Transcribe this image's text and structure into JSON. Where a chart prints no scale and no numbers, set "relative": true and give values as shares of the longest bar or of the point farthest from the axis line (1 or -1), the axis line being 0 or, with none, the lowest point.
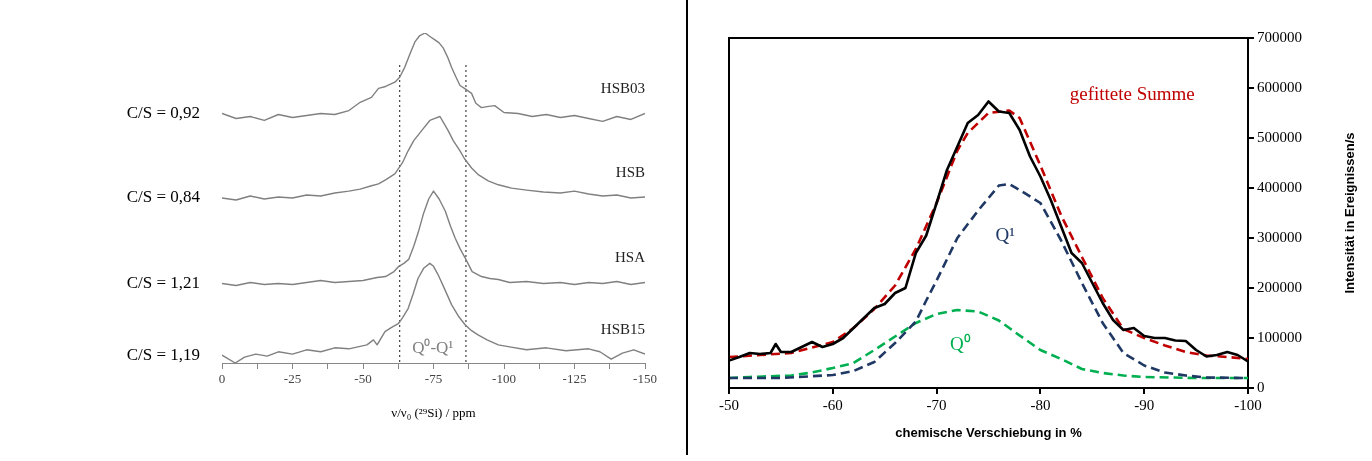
{
  "chart_data": [
    {
      "type": "line",
      "relative": true,
      "xlabel": "ν/ν₀ (²⁹Si) / ppm",
      "xlim": [
        0,
        -150
      ],
      "xticks": [
        0,
        {
          "value": -12.5,
          "label": null
        },
        -25,
        {
          "value": -37.5,
          "label": null
        },
        -50,
        {
          "value": -62.5,
          "label": null
        },
        -75,
        {
          "value": -87.5,
          "label": null
        },
        -100,
        {
          "value": -112.5,
          "label": null
        },
        -125,
        {
          "value": -137.5,
          "label": null
        },
        -150
      ],
      "tick_labels": "x",
      "marker": "none",
      "grid": false,
      "legend": false,
      "ref_lines": [
        {
          "axis": "x",
          "value": -63,
          "color": "#404040",
          "line_style": "dotted"
        },
        {
          "axis": "x",
          "value": -86.5,
          "color": "#404040",
          "line_style": "dotted"
        }
      ],
      "annotations": [
        "C/S = 0,92",
        "C/S = 0,84",
        "C/S = 1,21",
        "C/S = 1,19",
        "Q⁰-Q¹"
      ],
      "series": [
        {
          "name": "HSB03",
          "color": "#808080",
          "x": [
            0,
            -5,
            -10,
            -15,
            -20,
            -25,
            -30,
            -35,
            -40,
            -45,
            -49,
            -53,
            -55.5,
            -58,
            -61.3,
            -63,
            -64.8,
            -66.5,
            -68.4,
            -70,
            -72,
            -74,
            -75.5,
            -77,
            -78.5,
            -80,
            -81.4,
            -83,
            -84.4,
            -86,
            -88.5,
            -90,
            -92,
            -94,
            -96.7,
            -100,
            -105,
            -110,
            -115,
            -120,
            -125,
            -130,
            -135,
            -140,
            -145,
            -150
          ],
          "values": [
            0.756,
            0.741,
            0.747,
            0.735,
            0.753,
            0.744,
            0.75,
            0.756,
            0.753,
            0.765,
            0.79,
            0.805,
            0.832,
            0.838,
            0.851,
            0.866,
            0.896,
            0.933,
            0.973,
            0.991,
            1,
            0.988,
            0.979,
            0.97,
            0.954,
            0.927,
            0.896,
            0.866,
            0.841,
            0.832,
            0.817,
            0.787,
            0.774,
            0.777,
            0.78,
            0.759,
            0.756,
            0.747,
            0.753,
            0.744,
            0.75,
            0.741,
            0.732,
            0.747,
            0.738,
            0.756
          ]
        },
        {
          "name": "HSB",
          "color": "#808080",
          "x": [
            0,
            -5,
            -10,
            -15,
            -20,
            -25,
            -30,
            -35,
            -40,
            -45,
            -49,
            -53,
            -55.5,
            -58,
            -61.3,
            -64,
            -66,
            -68,
            -70.8,
            -73.7,
            -75.5,
            -77.3,
            -78.5,
            -80.2,
            -82,
            -84.4,
            -86,
            -88.5,
            -91,
            -94.4,
            -98,
            -102.7,
            -108,
            -114,
            -120,
            -125,
            -130,
            -135,
            -140,
            -145,
            -150
          ],
          "values": [
            0.5,
            0.494,
            0.506,
            0.497,
            0.503,
            0.5,
            0.509,
            0.506,
            0.515,
            0.521,
            0.527,
            0.537,
            0.543,
            0.555,
            0.573,
            0.607,
            0.643,
            0.674,
            0.704,
            0.735,
            0.741,
            0.747,
            0.729,
            0.704,
            0.674,
            0.643,
            0.619,
            0.591,
            0.57,
            0.552,
            0.54,
            0.53,
            0.524,
            0.518,
            0.515,
            0.521,
            0.512,
            0.506,
            0.509,
            0.5,
            0.503
          ]
        },
        {
          "name": "HSA",
          "color": "#808080",
          "x": [
            0,
            -5,
            -10,
            -15,
            -20,
            -25,
            -30,
            -35,
            -40,
            -45,
            -50,
            -55,
            -58,
            -61,
            -62.7,
            -64.5,
            -66.2,
            -68,
            -69.7,
            -71.5,
            -73.3,
            -75,
            -77,
            -79.2,
            -81,
            -82.7,
            -84.5,
            -86.3,
            -88.7,
            -92,
            -95,
            -98,
            -102,
            -108,
            -114,
            -120,
            -125,
            -130,
            -135,
            -140,
            -145,
            -150
          ],
          "values": [
            0.241,
            0.235,
            0.244,
            0.238,
            0.241,
            0.238,
            0.244,
            0.25,
            0.244,
            0.247,
            0.25,
            0.259,
            0.262,
            0.277,
            0.293,
            0.302,
            0.314,
            0.354,
            0.399,
            0.454,
            0.497,
            0.521,
            0.497,
            0.46,
            0.415,
            0.378,
            0.345,
            0.317,
            0.277,
            0.262,
            0.256,
            0.253,
            0.244,
            0.247,
            0.241,
            0.244,
            0.238,
            0.244,
            0.241,
            0.247,
            0.238,
            0.244
          ]
        },
        {
          "name": "HSB15",
          "color": "#808080",
          "x": [
            0,
            -4.7,
            -8,
            -12,
            -16,
            -20,
            -25,
            -30,
            -35,
            -40,
            -45,
            -51.4,
            -53.7,
            -55,
            -57.8,
            -60,
            -62.5,
            -64,
            -66,
            -67.8,
            -69.5,
            -71.5,
            -73.7,
            -75,
            -76.6,
            -79,
            -81.4,
            -84,
            -86.2,
            -88.5,
            -90.8,
            -94,
            -98,
            -102,
            -108,
            -115,
            -122,
            -130,
            -134,
            -138,
            -142,
            -146,
            -150
          ],
          "values": [
            0.024,
            0,
            0.018,
            0.027,
            0.021,
            0.034,
            0.027,
            0.04,
            0.034,
            0.046,
            0.043,
            0.055,
            0.07,
            0.055,
            0.095,
            0.107,
            0.119,
            0.137,
            0.165,
            0.21,
            0.256,
            0.287,
            0.302,
            0.293,
            0.268,
            0.223,
            0.177,
            0.14,
            0.116,
            0.098,
            0.085,
            0.07,
            0.055,
            0.049,
            0.04,
            0.046,
            0.037,
            0.043,
            0.034,
            0.012,
            0.03,
            0.04,
            0.027
          ]
        }
      ]
    },
    {
      "type": "line",
      "xlabel": "chemische Verschiebung in %",
      "y2label": "Intensität in Ereignissen/s",
      "xlim": [
        -50,
        -100
      ],
      "xticks": [
        -50,
        -60,
        -70,
        -80,
        -90,
        -100
      ],
      "y2lim": [
        0,
        700000
      ],
      "y2ticks": [
        0,
        100000,
        200000,
        300000,
        400000,
        500000,
        600000,
        700000
      ],
      "marker": "none",
      "grid": false,
      "legend": false,
      "series": [
        {
          "color": "#000000",
          "axis": "y2",
          "line_style": "solid",
          "x": [
            -50,
            -51,
            -52,
            -53,
            -54,
            -54.5,
            -55,
            -56,
            -57,
            -58,
            -59,
            -60,
            -61,
            -62,
            -63,
            -64,
            -65,
            -66,
            -67,
            -68,
            -69,
            -70,
            -71,
            -72,
            -73,
            -74,
            -75,
            -76,
            -77,
            -78,
            -79,
            -80,
            -81,
            -82,
            -83,
            -84,
            -85,
            -86,
            -87,
            -88,
            -89,
            -90,
            -91,
            -92,
            -93,
            -94,
            -95,
            -96,
            -97,
            -98,
            -99,
            -100
          ],
          "values": [
            55000,
            62000,
            70000,
            68000,
            70000,
            88000,
            72000,
            72000,
            82000,
            92000,
            82000,
            88000,
            100000,
            120000,
            140000,
            160000,
            168000,
            190000,
            200000,
            270000,
            305000,
            370000,
            436000,
            483000,
            530000,
            546000,
            573000,
            553000,
            550000,
            516000,
            463000,
            423000,
            376000,
            323000,
            270000,
            250000,
            210000,
            170000,
            136000,
            116000,
            120000,
            104000,
            100000,
            100000,
            95000,
            94000,
            76000,
            63000,
            66000,
            72000,
            66000,
            53000
          ]
        },
        {
          "name": "gefittete Summe",
          "color": "#c00000",
          "axis": "y2",
          "line_style": "dashed",
          "x": [
            -50,
            -56,
            -60,
            -62,
            -64,
            -66,
            -68,
            -70,
            -72,
            -73,
            -75,
            -77,
            -78,
            -80,
            -82,
            -84,
            -86,
            -88,
            -90,
            -92,
            -94,
            -96,
            -98,
            -100
          ],
          "values": [
            62000,
            70000,
            92000,
            120000,
            158000,
            205000,
            278000,
            370000,
            475000,
            510000,
            550000,
            555000,
            540000,
            445000,
            345000,
            262000,
            180000,
            118000,
            100000,
            85000,
            72000,
            65000,
            62000,
            58000
          ]
        },
        {
          "name": "Q¹",
          "color": "#1f3864",
          "axis": "y2",
          "line_style": "dashed",
          "x": [
            -50,
            -55,
            -60,
            -62,
            -64,
            -66,
            -68,
            -69,
            -70,
            -72,
            -74,
            -76,
            -77,
            -78,
            -80,
            -82,
            -84,
            -86,
            -88,
            -90,
            -92,
            -94,
            -96,
            -100
          ],
          "values": [
            20000,
            20000,
            26000,
            34000,
            52000,
            90000,
            133000,
            175000,
            215000,
            300000,
            355000,
            405000,
            408000,
            396000,
            370000,
            295000,
            210000,
            130000,
            70000,
            45000,
            31000,
            25000,
            21000,
            20000
          ]
        },
        {
          "name": "Q⁰",
          "color": "#00b050",
          "axis": "y2",
          "line_style": "dashed",
          "x": [
            -50,
            -52,
            -56,
            -58,
            -60,
            -62,
            -64,
            -66,
            -68,
            -70,
            -72,
            -74,
            -76,
            -78,
            -80,
            -82,
            -84,
            -86,
            -88,
            -90,
            -95,
            -100
          ],
          "values": [
            20000,
            22000,
            25000,
            31000,
            40000,
            50000,
            76000,
            103000,
            130000,
            148000,
            156000,
            153000,
            135000,
            105000,
            76000,
            58000,
            38000,
            30000,
            25000,
            22000,
            20000,
            20000
          ]
        }
      ]
    }
  ]
}
